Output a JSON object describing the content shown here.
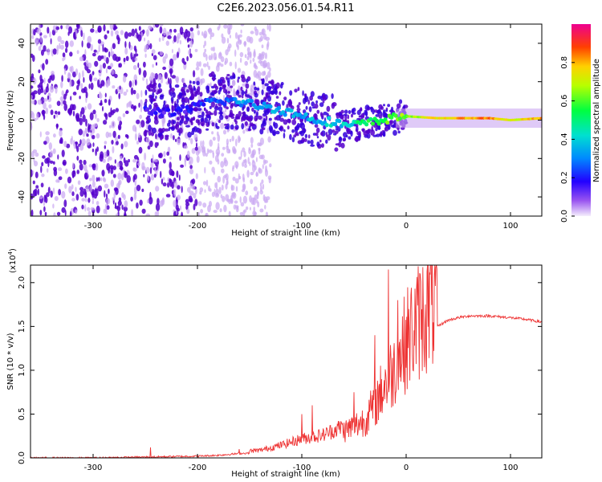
{
  "title": "C2E6.2023.056.01.54.R11",
  "colors": {
    "spectrogram_main": "#5500cc",
    "spectrogram_faint": "#c9a6f2",
    "snr_line": "#ee3333",
    "axes": "#000000"
  },
  "chart_data": [
    {
      "type": "heatmap",
      "title": "C2E6.2023.056.01.54.R11",
      "xlabel": "Height of straight line (km)",
      "ylabel": "Frequency (Hz)",
      "xlim": [
        -360,
        130
      ],
      "ylim": [
        -50,
        50
      ],
      "xticks": [
        -300,
        -200,
        -100,
        0,
        100
      ],
      "yticks": [
        -40,
        -20,
        0,
        20,
        40
      ],
      "ridge": {
        "description_of_trace": "frequency of the strongest spectral component vs height",
        "x": [
          -250,
          -220,
          -185,
          -165,
          -145,
          -125,
          -105,
          -85,
          -70,
          -55,
          -45,
          -30,
          -15,
          0,
          30,
          80,
          100,
          130
        ],
        "y": [
          5,
          4,
          10,
          10,
          8,
          6,
          3,
          0,
          -1,
          -3,
          -2,
          -1,
          1,
          2,
          1,
          1,
          0,
          1
        ],
        "amplitude": [
          0.15,
          0.15,
          0.25,
          0.3,
          0.35,
          0.35,
          0.35,
          0.35,
          0.4,
          0.4,
          0.5,
          0.55,
          0.6,
          0.65,
          0.75,
          0.85,
          0.7,
          0.8
        ]
      },
      "noise_region_end": -160,
      "colorbar": {
        "label": "Normalized spectral amplitude",
        "range": [
          0,
          1
        ],
        "ticks": [
          "0.0",
          "0.2",
          "0.4",
          "0.6",
          "0.8"
        ]
      }
    },
    {
      "type": "line",
      "xlabel": "Height of straight line (km)",
      "ylabel": "SNR (10 * v/v)",
      "ylabel_scale": "(x10",
      "ylabel_scale_exp": "4",
      "ylabel_scale_close": ")",
      "xlim": [
        -360,
        130
      ],
      "ylim": [
        0,
        2.2
      ],
      "xticks": [
        -300,
        -200,
        -100,
        0,
        100
      ],
      "yticks": [
        "0.0",
        "0.5",
        "1.0",
        "1.5",
        "2.0"
      ],
      "series": [
        {
          "name": "SNR",
          "x": [
            -360,
            -300,
            -250,
            -200,
            -180,
            -160,
            -140,
            -120,
            -100,
            -80,
            -60,
            -40,
            -30,
            -20,
            -10,
            0,
            10,
            20,
            30,
            40,
            50,
            60,
            80,
            100,
            115,
            130
          ],
          "y": [
            0.0,
            0.0,
            0.01,
            0.02,
            0.03,
            0.05,
            0.06,
            0.1,
            0.15,
            0.18,
            0.25,
            0.35,
            0.5,
            0.7,
            0.85,
            1.1,
            1.25,
            1.4,
            1.5,
            1.57,
            1.6,
            1.62,
            1.62,
            1.6,
            1.58,
            1.55
          ],
          "spikes_x": [
            -245,
            -160,
            -100,
            -90,
            -50,
            -30,
            -17,
            -8,
            10
          ],
          "spikes_y": [
            0.12,
            0.1,
            0.5,
            0.6,
            0.75,
            1.4,
            2.15,
            1.8,
            1.95
          ]
        }
      ]
    }
  ]
}
